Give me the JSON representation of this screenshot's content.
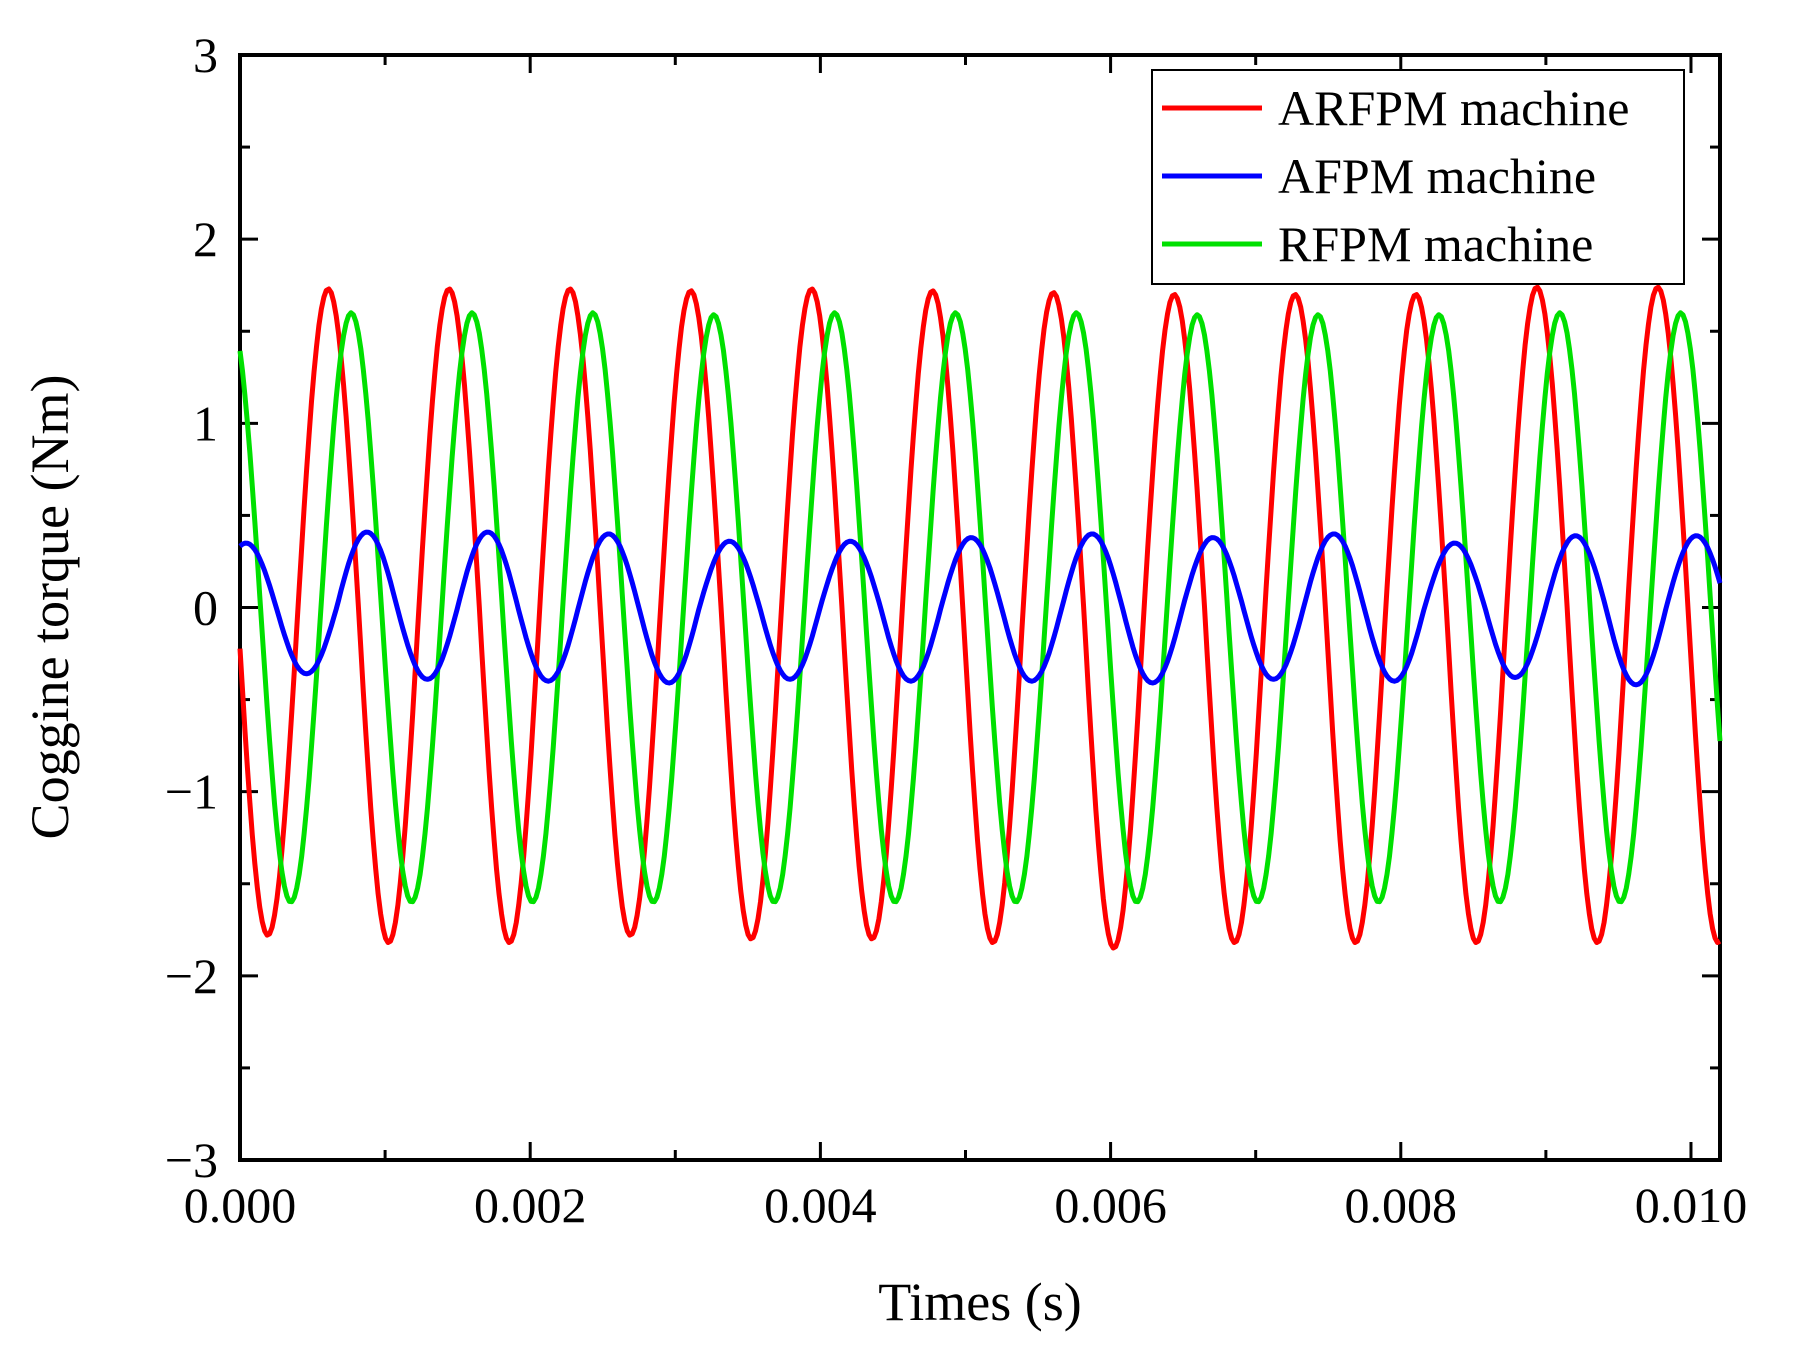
{
  "chart_data": {
    "type": "line",
    "title": "",
    "xlabel": "Times (s)",
    "ylabel": "Coggine torque (Nm)",
    "xlim": [
      0.0,
      0.0102
    ],
    "ylim": [
      -3,
      3
    ],
    "x_ticks": [
      0.0,
      0.002,
      0.004,
      0.006,
      0.008,
      0.01
    ],
    "x_tick_labels": [
      "0.000",
      "0.002",
      "0.004",
      "0.006",
      "0.008",
      "0.010"
    ],
    "y_ticks": [
      -3,
      -2,
      -1,
      0,
      1,
      2,
      3
    ],
    "y_tick_labels": [
      "−3",
      "−2",
      "−1",
      "0",
      "1",
      "2",
      "3"
    ],
    "grid": false,
    "legend_position": "top-right",
    "period": 0.000833,
    "series": [
      {
        "name": "ARFPM machine",
        "color": "#ff0000",
        "amplitude": 1.75,
        "phase_offset": 0.52,
        "peaks": [
          1.74,
          1.73,
          1.73,
          1.73,
          1.72,
          1.73,
          1.72,
          1.71,
          1.7,
          1.7,
          1.7,
          1.74
        ],
        "troughs": [
          -1.78,
          -1.82,
          -1.82,
          -1.78,
          -1.8,
          -1.8,
          -1.82,
          -1.85,
          -1.82,
          -1.82,
          -1.82,
          -1.82
        ]
      },
      {
        "name": "AFPM machine",
        "color": "#0000ff",
        "amplitude": 0.38,
        "phase_offset": 0.2,
        "peaks": [
          0.35,
          0.41,
          0.41,
          0.4,
          0.36,
          0.36,
          0.38,
          0.4,
          0.38,
          0.4,
          0.35,
          0.39
        ],
        "troughs": [
          -0.36,
          -0.39,
          -0.4,
          -0.41,
          -0.39,
          -0.4,
          -0.4,
          -0.41,
          -0.39,
          -0.4,
          -0.38,
          -0.42
        ]
      },
      {
        "name": "RFPM machine",
        "color": "#00e000",
        "amplitude": 1.6,
        "phase_offset": 0.33,
        "peaks": [
          1.59,
          1.6,
          1.6,
          1.6,
          1.59,
          1.6,
          1.6,
          1.6,
          1.59,
          1.59,
          1.59,
          1.6
        ],
        "troughs": [
          -1.6,
          -1.6,
          -1.6,
          -1.6,
          -1.6,
          -1.6,
          -1.6,
          -1.6,
          -1.6,
          -1.6,
          -1.6,
          -1.6
        ]
      }
    ]
  }
}
